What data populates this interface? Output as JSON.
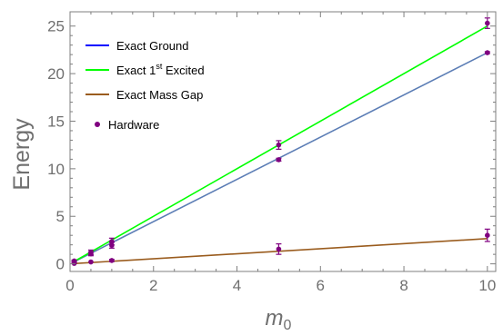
{
  "chart_data": {
    "type": "line",
    "xlabel": "m",
    "xlabel_sub": "0",
    "ylabel": "Energy",
    "xlim": [
      0,
      10.2
    ],
    "ylim": [
      -0.8,
      26.5
    ],
    "xticks": [
      0,
      2,
      4,
      6,
      8,
      10
    ],
    "yticks": [
      0,
      5,
      10,
      15,
      20,
      25
    ],
    "legend_position": "top-left",
    "grid": false,
    "series": [
      {
        "name": "Exact Ground",
        "kind": "line",
        "color": "#0000ff",
        "line_color": "#5b7db5",
        "x": [
          0.1,
          10
        ],
        "y": [
          0.22,
          22.2
        ]
      },
      {
        "name": "Exact 1st Excited",
        "name_parts": [
          "Exact 1",
          "st",
          " Excited"
        ],
        "kind": "line",
        "color": "#00ff00",
        "x": [
          0.1,
          10
        ],
        "y": [
          0.25,
          25.0
        ]
      },
      {
        "name": "Exact Mass Gap",
        "kind": "line",
        "color": "#9a5c1e",
        "x": [
          0.1,
          10
        ],
        "y": [
          0.03,
          2.65
        ]
      },
      {
        "name": "Hardware",
        "kind": "errorbar",
        "color": "#800080",
        "points": [
          {
            "x": 0.1,
            "y": 0.2,
            "err": 0.1
          },
          {
            "x": 0.1,
            "y": 0.3,
            "err": 0.1
          },
          {
            "x": 0.1,
            "y": 0.05,
            "err": 0.05
          },
          {
            "x": 0.5,
            "y": 1.05,
            "err": 0.2
          },
          {
            "x": 0.5,
            "y": 1.2,
            "err": 0.25
          },
          {
            "x": 0.5,
            "y": 0.2,
            "err": 0.08
          },
          {
            "x": 1,
            "y": 1.95,
            "err": 0.3
          },
          {
            "x": 1,
            "y": 2.35,
            "err": 0.35
          },
          {
            "x": 1,
            "y": 0.35,
            "err": 0.12
          },
          {
            "x": 5,
            "y": 10.95,
            "err": 0.15
          },
          {
            "x": 5,
            "y": 12.5,
            "err": 0.45
          },
          {
            "x": 5,
            "y": 1.55,
            "err": 0.55
          },
          {
            "x": 10,
            "y": 22.2,
            "err": 0.1
          },
          {
            "x": 10,
            "y": 25.3,
            "err": 0.55
          },
          {
            "x": 10,
            "y": 3.0,
            "err": 0.65
          }
        ]
      }
    ]
  }
}
